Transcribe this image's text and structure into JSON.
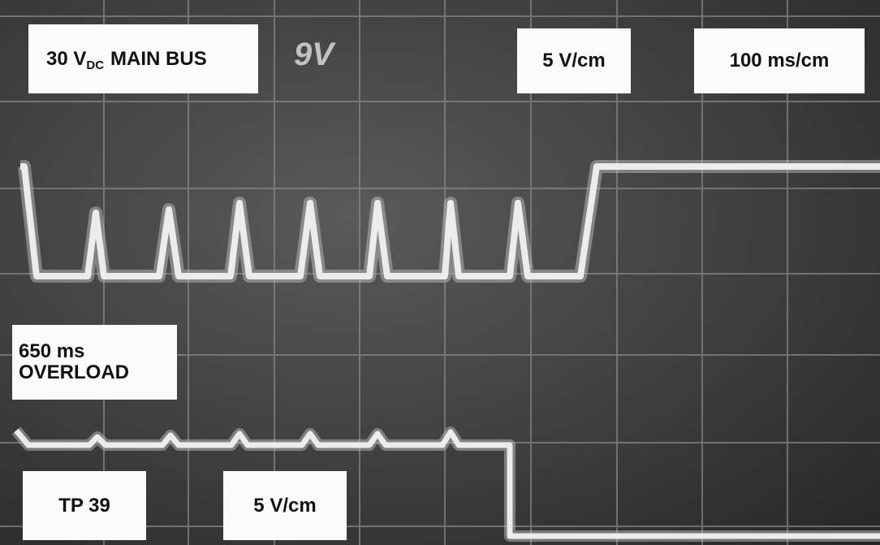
{
  "labels": {
    "main_bus": {
      "text": "30 V",
      "subscript": "DC",
      "suffix": "MAIN BUS"
    },
    "top_scale": "5 V/cm",
    "time_scale": "100 ms/cm",
    "overload": {
      "line1": "650 ms",
      "line2": "OVERLOAD"
    },
    "probe": "TP 39",
    "bottom_scale": "5 V/cm",
    "scribble": "9V"
  }
}
